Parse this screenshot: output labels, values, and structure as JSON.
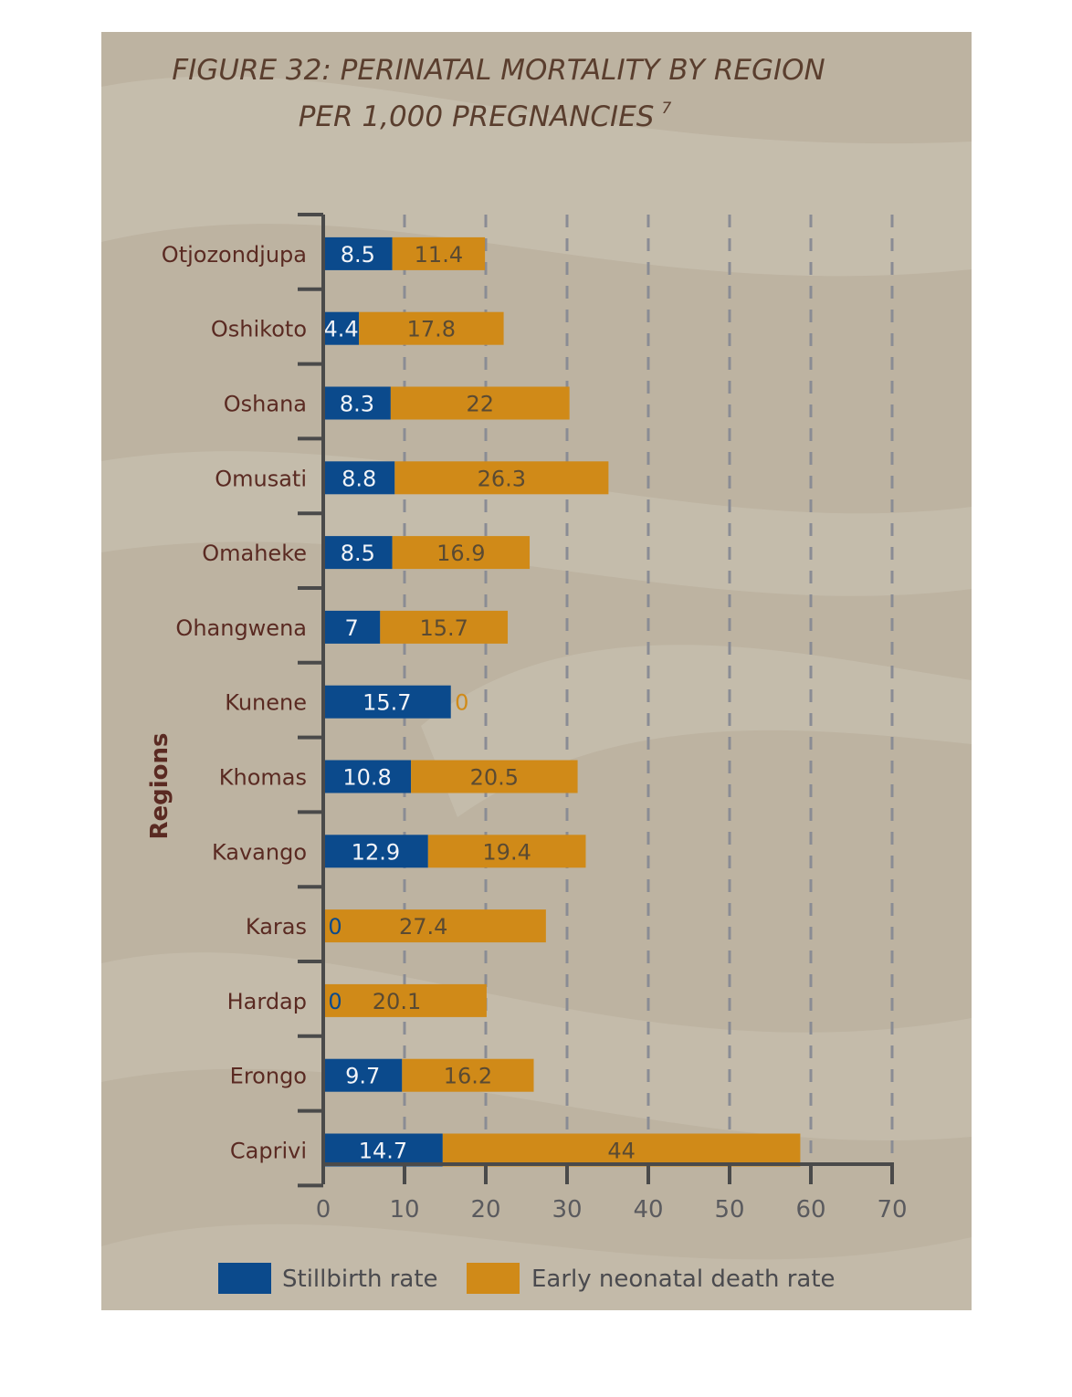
{
  "chart_data": {
    "type": "bar",
    "stacked": true,
    "orientation": "horizontal",
    "title": "FIGURE 32: PERINATAL MORTALITY BY REGION",
    "subtitle": "PER 1,000 PREGNANCIES",
    "title_footnote": "7",
    "ylabel": "Regions",
    "xlabel": "",
    "xlim": [
      0,
      70
    ],
    "xticks": [
      0,
      10,
      20,
      30,
      40,
      50,
      60,
      70
    ],
    "grid": "vertical dashed",
    "legend_position": "bottom",
    "categories": [
      "Otjozondjupa",
      "Oshikoto",
      "Oshana",
      "Omusati",
      "Omaheke",
      "Ohangwena",
      "Kunene",
      "Khomas",
      "Kavango",
      "Karas",
      "Hardap",
      "Erongo",
      "Caprivi"
    ],
    "series": [
      {
        "name": "Stillbirth rate",
        "color": "#0b4a8c",
        "values": [
          8.5,
          4.4,
          8.3,
          8.8,
          8.5,
          7,
          15.7,
          10.8,
          12.9,
          0,
          0,
          9.7,
          14.7
        ]
      },
      {
        "name": "Early neonatal death rate",
        "color": "#d08a18",
        "values": [
          11.4,
          17.8,
          22,
          26.3,
          16.9,
          15.7,
          0,
          20.5,
          19.4,
          27.4,
          20.1,
          16.2,
          44
        ]
      }
    ]
  },
  "colors": {
    "background": "#bdb3a1",
    "band": "#ccc5b6",
    "title": "#5a3e2e",
    "axis": "#4a4a4a",
    "category_label": "#5a2a22",
    "stillbirth": "#0b4a8c",
    "neonatal": "#d08a18"
  }
}
